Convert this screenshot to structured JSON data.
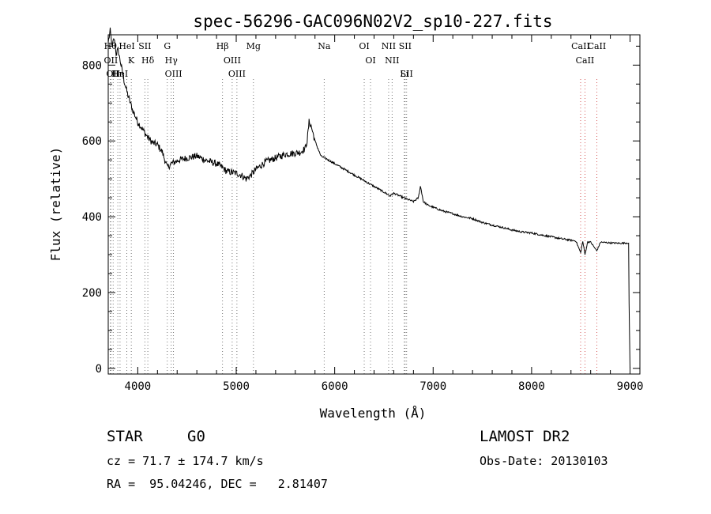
{
  "chart_data": {
    "type": "line",
    "title": "spec-56296-GAC096N02V2_sp10-227.fits",
    "xlabel": "Wavelength (Å)",
    "ylabel": "Flux (relative)",
    "xlim": [
      3700,
      9100
    ],
    "ylim": [
      -15,
      880
    ],
    "xticks": [
      4000,
      5000,
      6000,
      7000,
      8000,
      9000
    ],
    "yticks": [
      0,
      200,
      400,
      600,
      800
    ],
    "grid": false,
    "series": [
      {
        "x": [
          3700,
          3720,
          3740,
          3760,
          3780,
          3800,
          3830,
          3860,
          3900,
          3950,
          4000,
          4050,
          4100,
          4150,
          4200,
          4250,
          4300,
          4340,
          4380,
          4420,
          4500,
          4600,
          4700,
          4800,
          4860,
          4900,
          5000,
          5050,
          5100,
          5150,
          5200,
          5300,
          5400,
          5500,
          5600,
          5650,
          5700,
          5720,
          5740,
          5760,
          5780,
          5800,
          5830,
          5860,
          5900,
          6000,
          6100,
          6200,
          6300,
          6400,
          6500,
          6563,
          6600,
          6700,
          6800,
          6850,
          6870,
          6880,
          6900,
          6950,
          7000,
          7100,
          7200,
          7300,
          7400,
          7500,
          7600,
          7700,
          7800,
          7900,
          8000,
          8100,
          8200,
          8300,
          8400,
          8450,
          8498,
          8520,
          8542,
          8570,
          8600,
          8662,
          8700,
          8800,
          8900,
          8980,
          8985,
          8990,
          9000
        ],
        "y": [
          860,
          890,
          850,
          870,
          830,
          840,
          800,
          760,
          720,
          680,
          650,
          630,
          610,
          595,
          590,
          570,
          530,
          540,
          545,
          550,
          555,
          560,
          548,
          540,
          530,
          520,
          515,
          510,
          500,
          510,
          525,
          545,
          555,
          565,
          568,
          570,
          580,
          600,
          650,
          640,
          620,
          600,
          580,
          560,
          555,
          540,
          525,
          510,
          495,
          480,
          465,
          455,
          462,
          450,
          440,
          450,
          480,
          470,
          440,
          430,
          425,
          415,
          408,
          400,
          395,
          385,
          378,
          372,
          365,
          360,
          357,
          352,
          347,
          342,
          338,
          336,
          305,
          335,
          300,
          334,
          333,
          310,
          333,
          331,
          330,
          331,
          330,
          170,
          0
        ]
      }
    ],
    "lines": [
      {
        "x": 3722,
        "label": "Hθ"
      },
      {
        "x": 3727,
        "label": "OII"
      },
      {
        "x": 3750,
        "label": "OII"
      },
      {
        "x": 3797,
        "label": "Hη"
      },
      {
        "x": 3820,
        "label": "HeI"
      },
      {
        "x": 3889,
        "label": "HeI"
      },
      {
        "x": 3934,
        "label": "K"
      },
      {
        "x": 4072,
        "label": "SII"
      },
      {
        "x": 4102,
        "label": "Hδ"
      },
      {
        "x": 4300,
        "label": "G"
      },
      {
        "x": 4340,
        "label": "Hγ"
      },
      {
        "x": 4363,
        "label": "OIII"
      },
      {
        "x": 4861,
        "label": "Hβ"
      },
      {
        "x": 4959,
        "label": "OIII"
      },
      {
        "x": 5007,
        "label": "OIII"
      },
      {
        "x": 5175,
        "label": "Mg"
      },
      {
        "x": 5893,
        "label": "Na"
      },
      {
        "x": 6300,
        "label": "OI"
      },
      {
        "x": 6364,
        "label": "OI"
      },
      {
        "x": 6548,
        "label": "NII"
      },
      {
        "x": 6583,
        "label": "NII"
      },
      {
        "x": 6707,
        "label": "Li"
      },
      {
        "x": 6716,
        "label": "SII"
      },
      {
        "x": 6731,
        "label": "SII"
      },
      {
        "x": 8498,
        "label": "CaII"
      },
      {
        "x": 8542,
        "label": "CaII"
      },
      {
        "x": 8662,
        "label": "CaII"
      }
    ]
  },
  "info": {
    "class_label": "STAR",
    "subclass_label": "G0",
    "survey": "LAMOST DR2",
    "cz": "cz = 71.7 ± 174.7 km/s",
    "obs_date": "Obs-Date: 20130103",
    "coords": "RA =  95.04246, DEC =   2.81407"
  }
}
